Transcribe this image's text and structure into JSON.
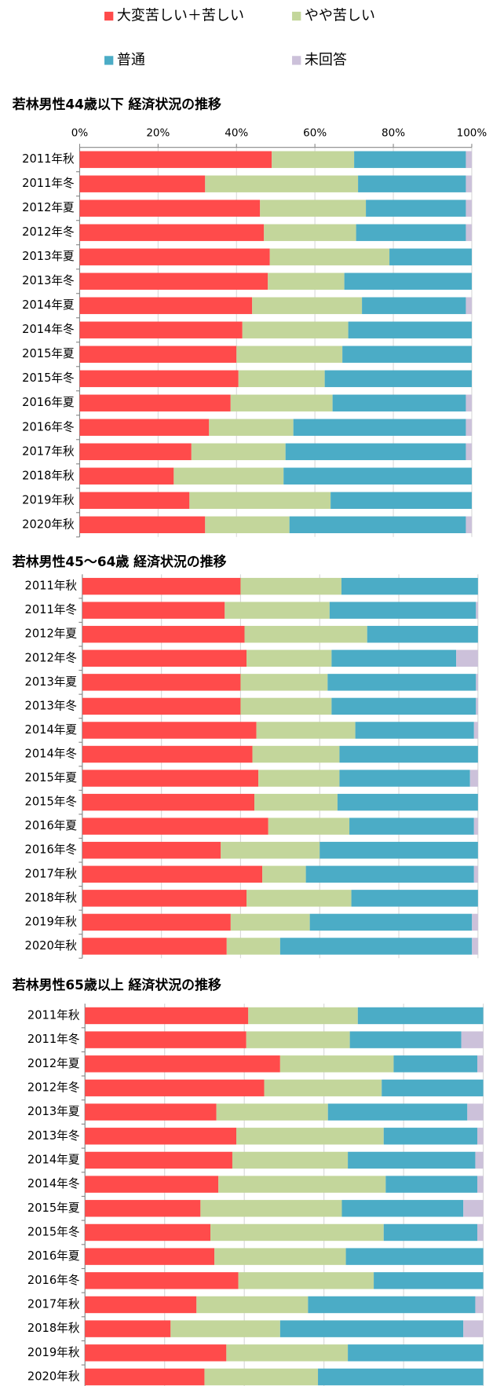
{
  "chart_data": [
    {
      "type": "stacked_bar_horizontal",
      "title": "若林男性44歳以下 経済状況の推移",
      "categories": [
        "2011年秋",
        "2011年冬",
        "2012年夏",
        "2012年冬",
        "2013年夏",
        "2013年冬",
        "2014年夏",
        "2014年冬",
        "2015年夏",
        "2015年冬",
        "2016年夏",
        "2016年冬",
        "2017年秋",
        "2018年秋",
        "2019年秋",
        "2020年秋"
      ],
      "series": [
        {
          "name": "大変苦しい＋苦しい",
          "color": "#ff4b4b",
          "values": [
            49,
            32,
            46,
            47,
            48.5,
            48,
            44,
            41.5,
            40,
            40.5,
            38.5,
            33,
            28.5,
            24,
            28,
            32
          ]
        },
        {
          "name": "やや苦しい",
          "color": "#c3d69b",
          "values": [
            21,
            39,
            27,
            23.5,
            30.5,
            19.5,
            28,
            27,
            27,
            22,
            26,
            21.5,
            24,
            28,
            36,
            21.5
          ]
        },
        {
          "name": "普通",
          "color": "#4bacc6",
          "values": [
            28.5,
            27.5,
            25.5,
            28,
            21,
            32.5,
            26.5,
            31.5,
            33,
            37.5,
            34,
            44,
            46,
            48,
            36,
            45
          ]
        },
        {
          "name": "未回答",
          "color": "#ccc1da",
          "values": [
            1.5,
            1.5,
            1.5,
            1.5,
            0,
            0,
            1.5,
            0,
            0,
            0,
            1.5,
            1.5,
            1.5,
            0,
            0,
            1.5
          ]
        }
      ],
      "xlim": [
        0,
        100
      ],
      "xticks": [
        {
          "value": 0,
          "label": "0%"
        },
        {
          "value": 20,
          "label": "20%"
        },
        {
          "value": 40,
          "label": "40%"
        },
        {
          "value": 60,
          "label": "60%"
        },
        {
          "value": 80,
          "label": "80%"
        },
        {
          "value": 100,
          "label": "100%"
        }
      ],
      "show_tick_labels": true,
      "grid": true
    },
    {
      "type": "stacked_bar_horizontal",
      "title": "若林男性45～64歳 経済状況の推移",
      "categories": [
        "2011年秋",
        "2011年冬",
        "2012年夏",
        "2012年冬",
        "2013年夏",
        "2013年冬",
        "2014年夏",
        "2014年冬",
        "2015年夏",
        "2015年冬",
        "2016年夏",
        "2016年冬",
        "2017年秋",
        "2018年秋",
        "2019年秋",
        "2020年秋"
      ],
      "series": [
        {
          "name": "大変苦しい＋苦しい",
          "color": "#ff4b4b",
          "values": [
            40,
            36,
            41,
            41.5,
            40,
            40,
            44,
            43,
            44.5,
            43.5,
            47,
            35,
            45.5,
            41.5,
            37.5,
            36.5
          ]
        },
        {
          "name": "やや苦しい",
          "color": "#c3d69b",
          "values": [
            25.5,
            26.5,
            31,
            21.5,
            22,
            23,
            25,
            22,
            20.5,
            21,
            20.5,
            25,
            11,
            26.5,
            20,
            13.5
          ]
        },
        {
          "name": "普通",
          "color": "#4bacc6",
          "values": [
            34.5,
            37,
            28,
            31.5,
            37.5,
            36.5,
            30,
            35,
            33,
            35.5,
            31.5,
            40,
            42.5,
            32,
            41,
            48.5
          ]
        },
        {
          "name": "未回答",
          "color": "#ccc1da",
          "values": [
            0,
            0.5,
            0,
            5.5,
            0.5,
            0.5,
            1,
            0,
            2,
            0,
            1,
            0,
            1,
            0,
            1.5,
            1.5
          ]
        }
      ],
      "xlim": [
        0,
        100
      ],
      "xticks": [
        0,
        20,
        40,
        60,
        80,
        100
      ],
      "show_tick_labels": false,
      "grid": true
    },
    {
      "type": "stacked_bar_horizontal",
      "title": "若林男性65歳以上 経済状況の推移",
      "categories": [
        "2011年秋",
        "2011年冬",
        "2012年夏",
        "2012年冬",
        "2013年夏",
        "2013年冬",
        "2014年夏",
        "2014年冬",
        "2015年夏",
        "2015年冬",
        "2016年夏",
        "2016年冬",
        "2017年秋",
        "2018年秋",
        "2019年秋",
        "2020年秋"
      ],
      "series": [
        {
          "name": "大変苦しい＋苦しい",
          "color": "#ff4b4b",
          "values": [
            41,
            40.5,
            49,
            45,
            33,
            38,
            37,
            33.5,
            29,
            31.5,
            32.5,
            38.5,
            28,
            21.5,
            35.5,
            30
          ]
        },
        {
          "name": "やや苦しい",
          "color": "#c3d69b",
          "values": [
            27.5,
            26,
            28.5,
            29.5,
            28,
            37,
            29,
            42,
            35.5,
            43.5,
            33,
            34,
            28,
            27.5,
            30.5,
            28.5
          ]
        },
        {
          "name": "普通",
          "color": "#4bacc6",
          "values": [
            31.5,
            28,
            21,
            25.5,
            35,
            23.5,
            32,
            23,
            30.5,
            23.5,
            34.5,
            27.5,
            42,
            46,
            34,
            41.5
          ]
        },
        {
          "name": "未回答",
          "color": "#ccc1da",
          "values": [
            0,
            5.5,
            1.5,
            0,
            4,
            1.5,
            2,
            1.5,
            5,
            1.5,
            0,
            0,
            2,
            5,
            0,
            0
          ]
        }
      ],
      "xlim": [
        0,
        100
      ],
      "xticks": [
        0,
        20,
        40,
        60,
        80,
        100
      ],
      "show_tick_labels": false,
      "grid": true
    }
  ]
}
